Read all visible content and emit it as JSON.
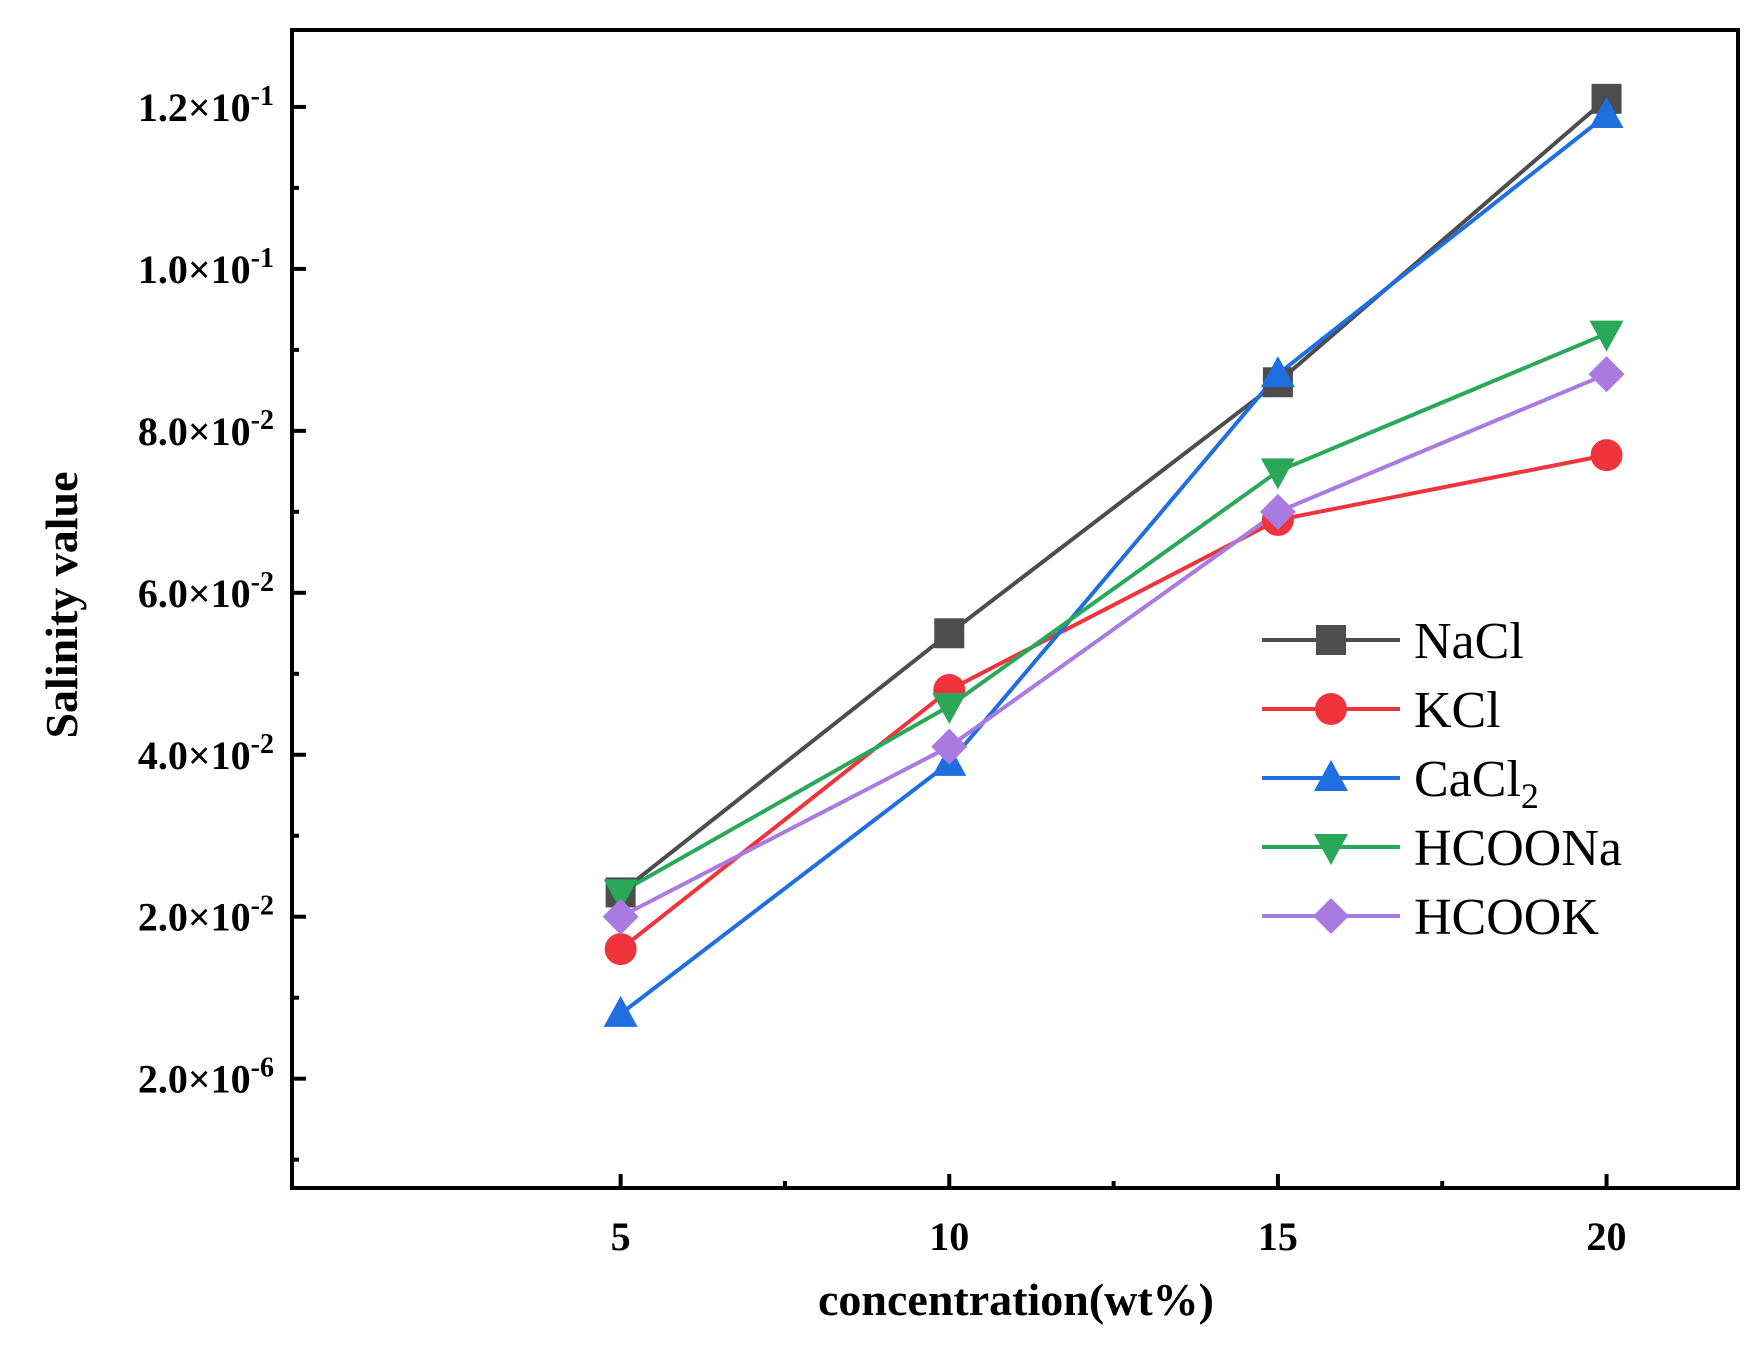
{
  "chart_data": {
    "type": "line",
    "title": "",
    "xlabel": "concentration(wt%)",
    "ylabel": "Salinity value",
    "xlim": [
      0,
      22
    ],
    "ylim": [
      -0.0135,
      0.1295
    ],
    "x_ticks": [
      5,
      10,
      15,
      20
    ],
    "x_tick_labels": [
      "5",
      "10",
      "15",
      "20"
    ],
    "y_ticks": [
      {
        "value": 0.0,
        "mantissa": "2.0",
        "exponent": "-6"
      },
      {
        "value": 0.02,
        "mantissa": "2.0",
        "exponent": "-2"
      },
      {
        "value": 0.04,
        "mantissa": "4.0",
        "exponent": "-2"
      },
      {
        "value": 0.06,
        "mantissa": "6.0",
        "exponent": "-2"
      },
      {
        "value": 0.08,
        "mantissa": "8.0",
        "exponent": "-2"
      },
      {
        "value": 0.1,
        "mantissa": "1.0",
        "exponent": "-1"
      },
      {
        "value": 0.12,
        "mantissa": "1.2",
        "exponent": "-1"
      }
    ],
    "grid": false,
    "legend_position": "center-right",
    "x": [
      5,
      10,
      15,
      20
    ],
    "series": [
      {
        "name": "NaCl",
        "base": "NaCl",
        "sub": "",
        "marker": "square",
        "color": "#4d4d4d",
        "values": [
          0.023,
          0.055,
          0.086,
          0.121
        ]
      },
      {
        "name": "KCl",
        "base": "KCl",
        "sub": "",
        "marker": "circle",
        "color": "#f0343c",
        "values": [
          0.016,
          0.048,
          0.069,
          0.077
        ]
      },
      {
        "name": "CaCl2",
        "base": "CaCl",
        "sub": "2",
        "marker": "triangle-up",
        "color": "#1f6fe0",
        "values": [
          0.008,
          0.039,
          0.087,
          0.119
        ]
      },
      {
        "name": "HCOONa",
        "base": "HCOONa",
        "sub": "",
        "marker": "triangle-down",
        "color": "#2aa85a",
        "values": [
          0.023,
          0.046,
          0.075,
          0.092
        ]
      },
      {
        "name": "HCOOK",
        "base": "HCOOK",
        "sub": "",
        "marker": "diamond",
        "color": "#a97be0",
        "values": [
          0.02,
          0.041,
          0.07,
          0.087
        ]
      }
    ]
  }
}
